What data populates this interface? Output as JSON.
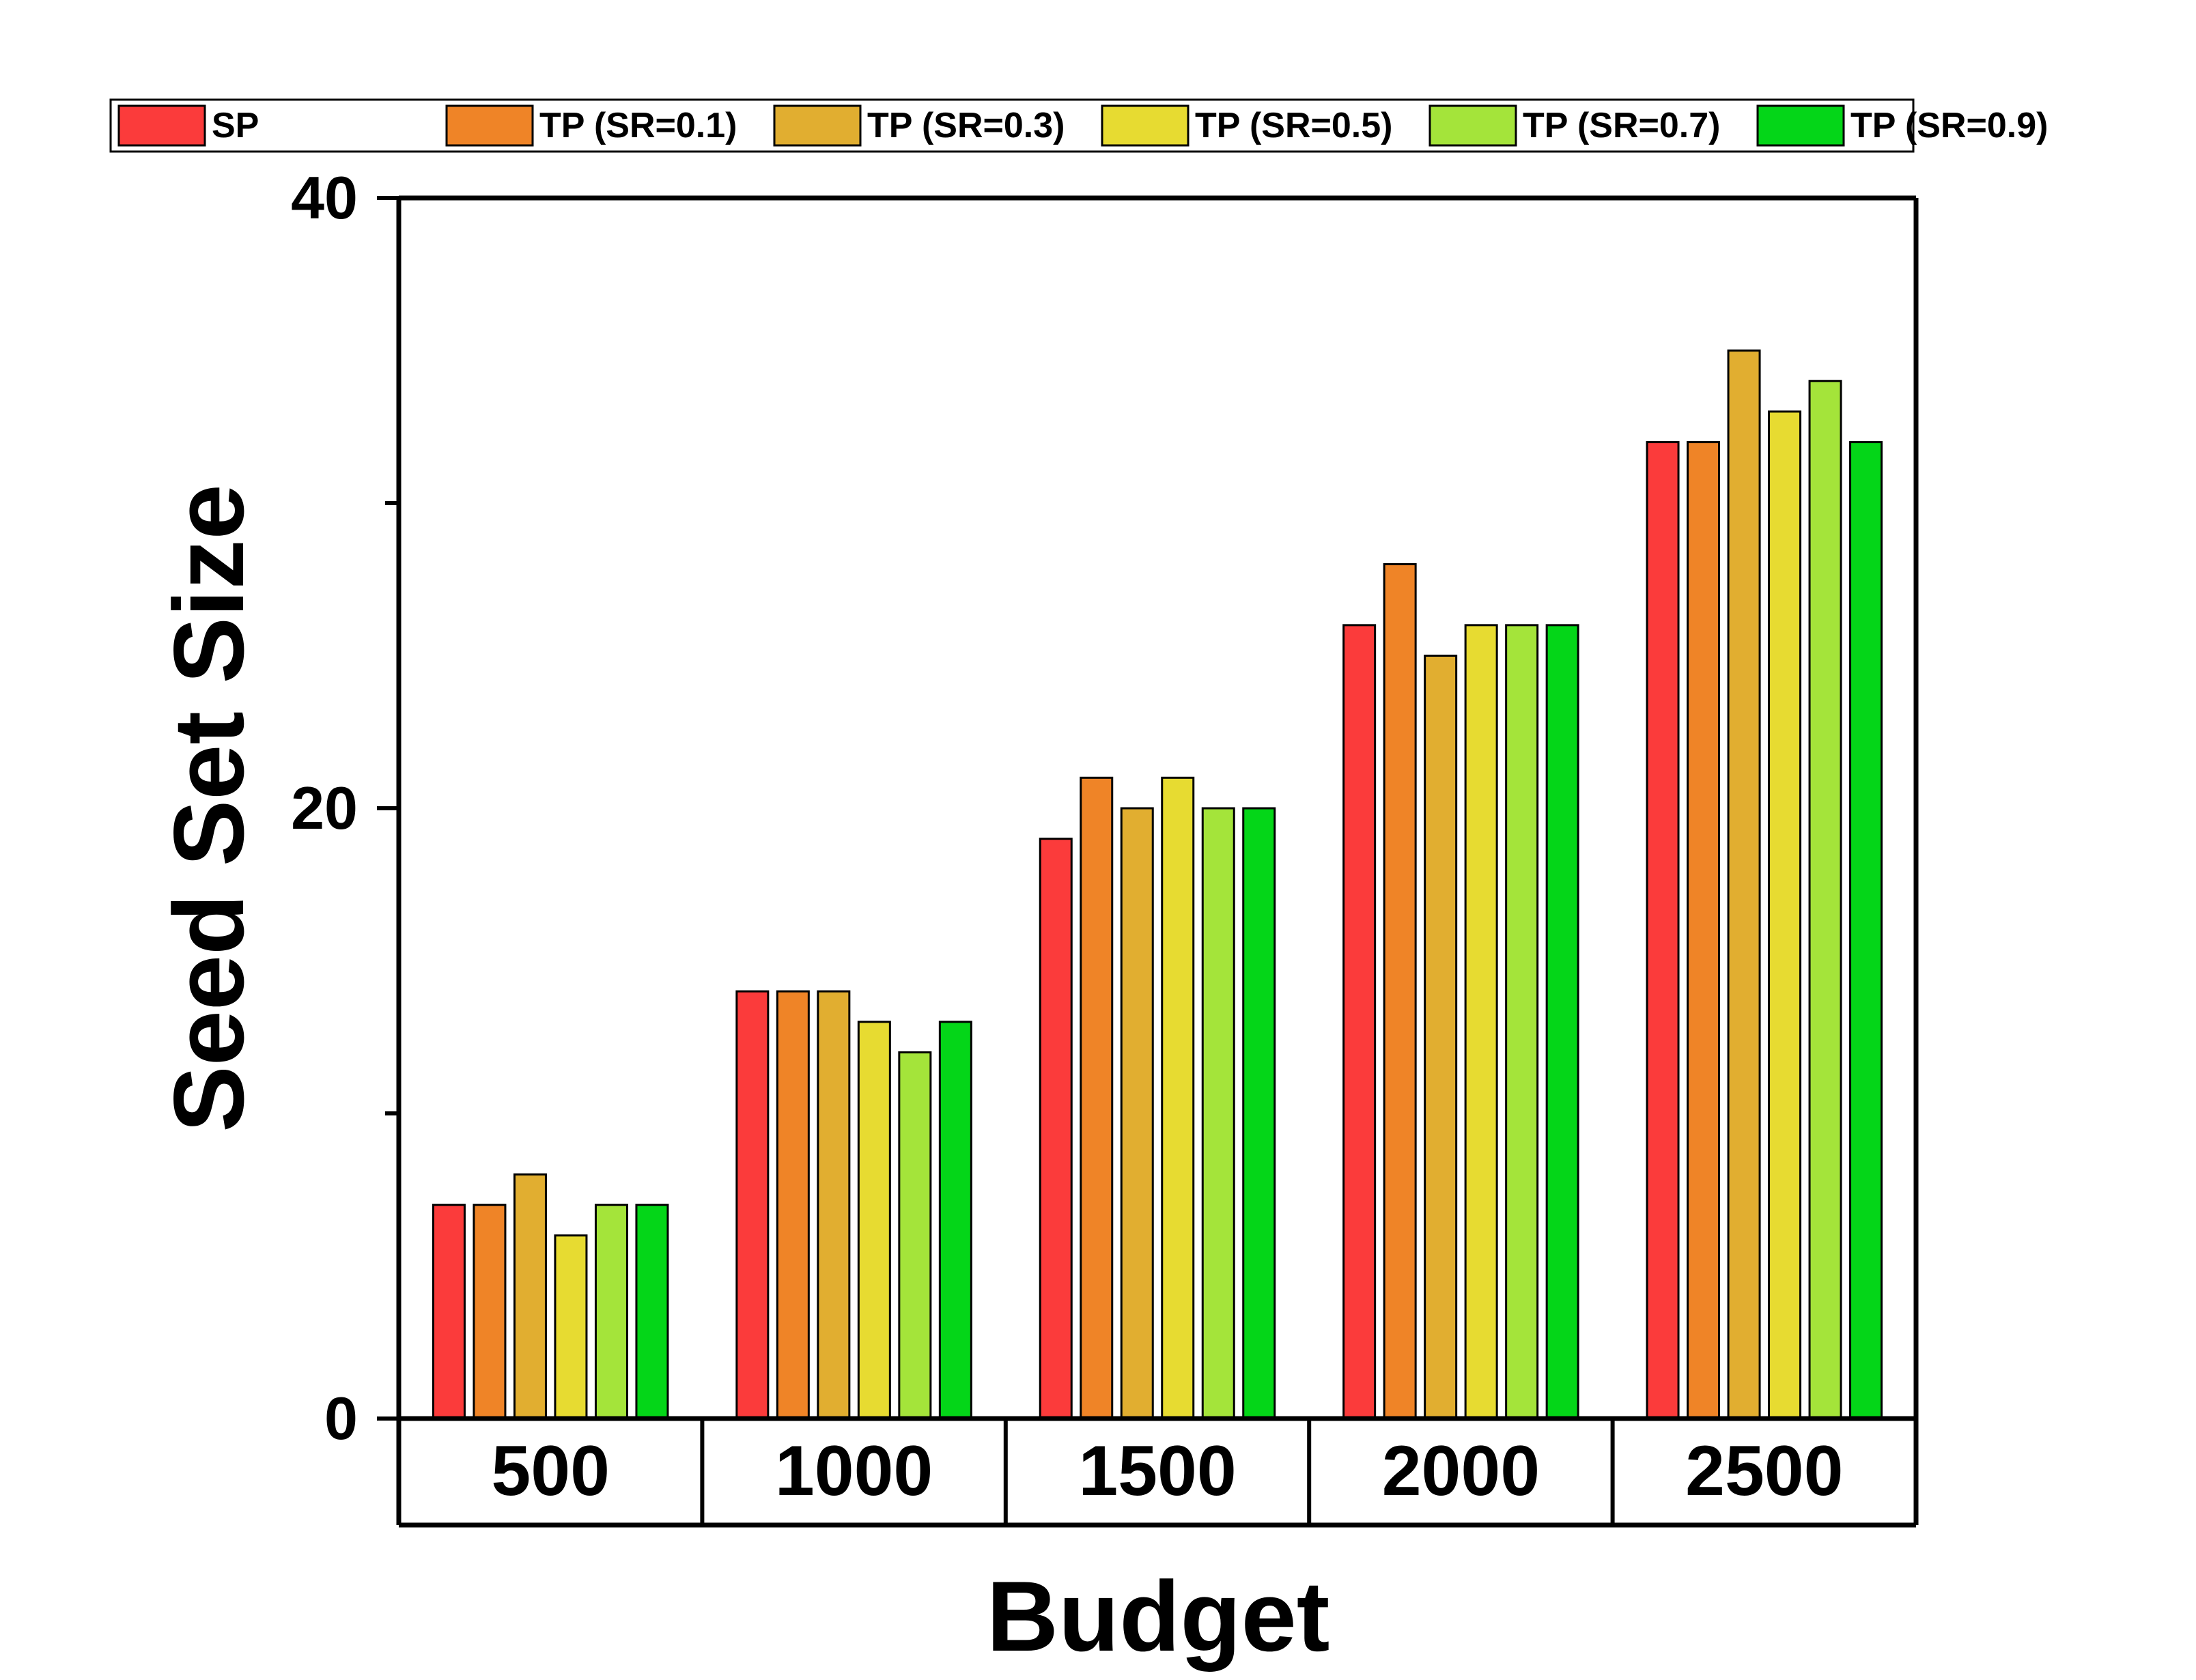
{
  "chart_data": {
    "type": "bar",
    "title": "",
    "xlabel": "Budget",
    "ylabel": "Seed Set Size",
    "categories": [
      "500",
      "1000",
      "1500",
      "2000",
      "2500"
    ],
    "ylim": [
      0,
      40
    ],
    "yticks": [
      0,
      20,
      40
    ],
    "ytick_labels": [
      "0",
      "20",
      "40"
    ],
    "grid": false,
    "legend_position": "top",
    "series": [
      {
        "name": "SP",
        "color": "#fb3b3b",
        "values": [
          7,
          14,
          19,
          26,
          32
        ]
      },
      {
        "name": "TP (SR=0.1)",
        "color": "#ef8427",
        "values": [
          7,
          14,
          21,
          28,
          32
        ]
      },
      {
        "name": "TP (SR=0.3)",
        "color": "#e1ae30",
        "values": [
          8,
          14,
          20,
          25,
          35
        ]
      },
      {
        "name": "TP (SR=0.5)",
        "color": "#e7db31",
        "values": [
          6,
          13,
          21,
          26,
          33
        ]
      },
      {
        "name": "TP (SR=0.7)",
        "color": "#a4e43a",
        "values": [
          7,
          12,
          20,
          26,
          34
        ]
      },
      {
        "name": "TP (SR=0.9)",
        "color": "#04d618",
        "values": [
          7,
          13,
          20,
          26,
          32
        ]
      }
    ]
  }
}
